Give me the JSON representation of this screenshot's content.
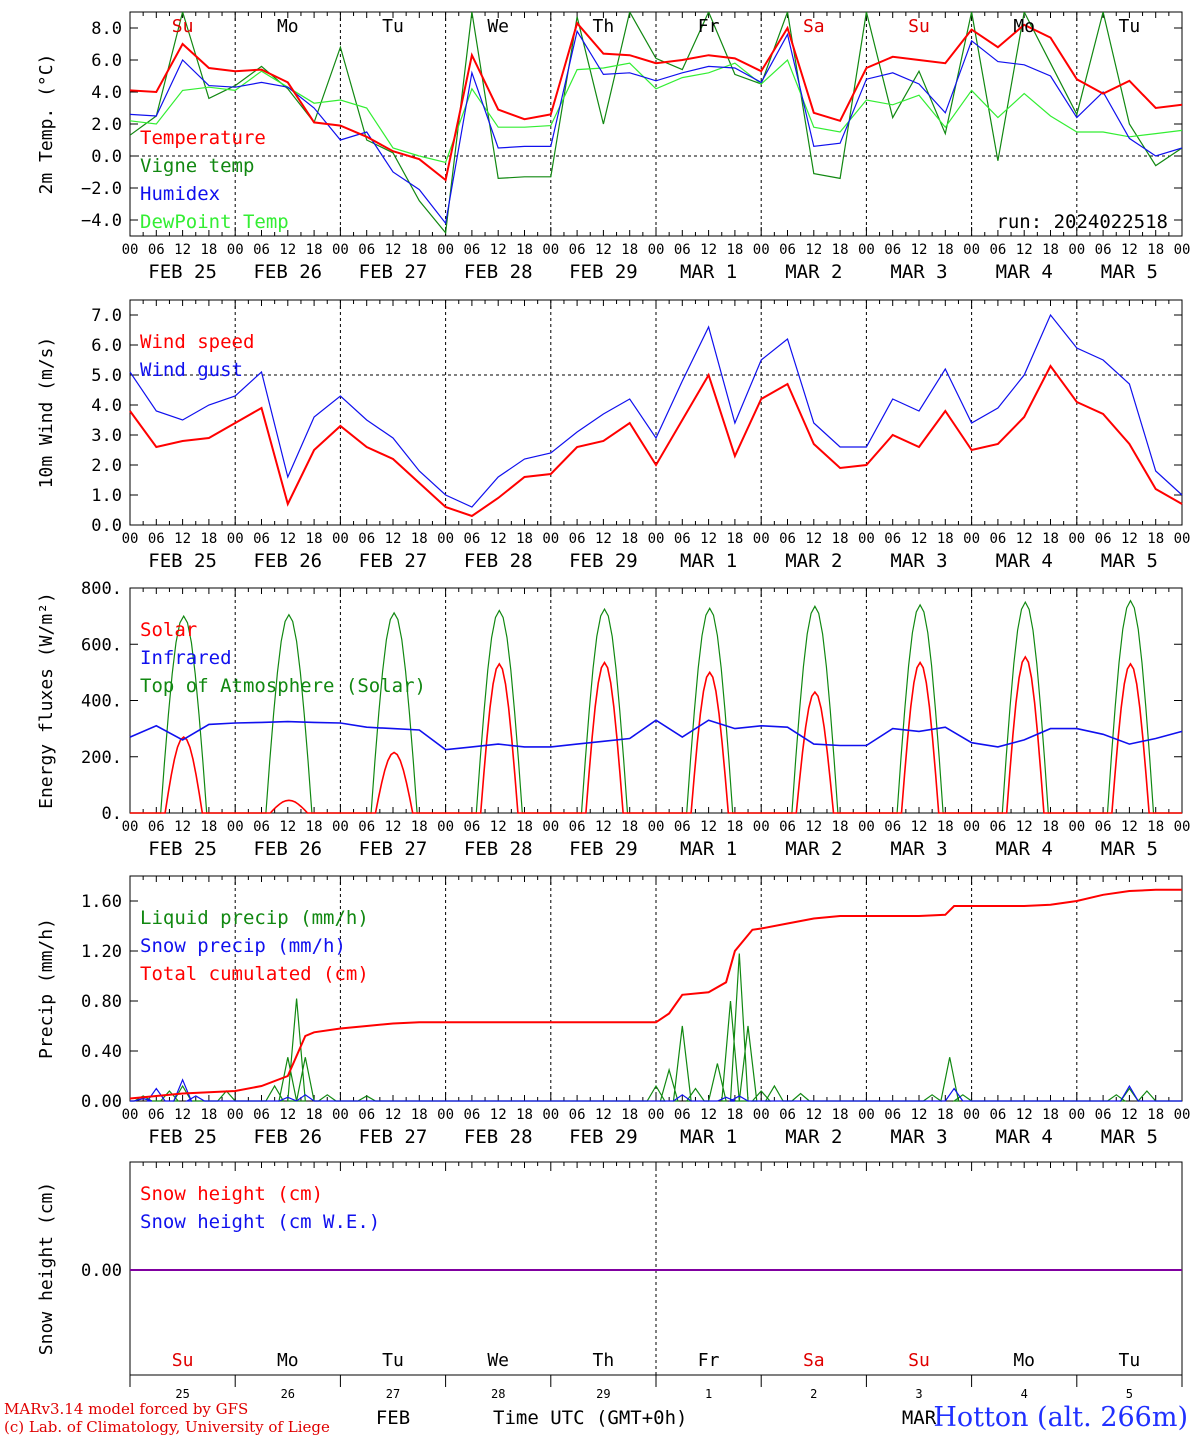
{
  "footer": {
    "credit_model": "MARv3.14 model forced by GFS",
    "credit_lab": "(c) Lab. of Climatology, University of Liege",
    "station": "Hotton (alt. 266m)"
  },
  "colors": {
    "red": "#ff0000",
    "green": "#118811",
    "blue": "#1010ee",
    "lightgreen": "#33ee33",
    "purple": "#8000a0"
  },
  "chart_data": [
    {
      "id": "temperature",
      "type": "line",
      "ylabel": "2m Temp. (°C)",
      "ylim": [
        -5.0,
        9.0
      ],
      "yticks": [
        -4,
        -2,
        0,
        2,
        4,
        6,
        8
      ],
      "ytick_labels": [
        "−4.0",
        "−2.0",
        "0.0",
        "2.0",
        "4.0",
        "6.0",
        "8.0"
      ],
      "ref_line": 0,
      "weekday_labels": [
        "Su",
        "Mo",
        "Tu",
        "We",
        "Th",
        "Fr",
        "Sa",
        "Su",
        "Mo",
        "Tu"
      ],
      "weekday_colors": [
        "red",
        "black",
        "black",
        "black",
        "black",
        "black",
        "red",
        "red",
        "black",
        "black"
      ],
      "annotation": "run: 2024022518",
      "x_hours": [
        0,
        6,
        12,
        18,
        24,
        30,
        36,
        42,
        48,
        54,
        60,
        66,
        72,
        78,
        84,
        90,
        96,
        102,
        108,
        114,
        120,
        126,
        132,
        138,
        144,
        150,
        156,
        162,
        168,
        174,
        180,
        186,
        192,
        198,
        204,
        210,
        216,
        222,
        228,
        234,
        240
      ],
      "series": [
        {
          "name": "Temperature",
          "color": "red",
          "values": [
            4.1,
            4.0,
            7.0,
            5.5,
            5.3,
            5.4,
            4.6,
            2.1,
            1.9,
            1.2,
            0.3,
            -0.2,
            -1.5,
            6.3,
            2.9,
            2.3,
            2.6,
            8.3,
            6.4,
            6.3,
            5.8,
            6.0,
            6.3,
            6.1,
            5.3,
            8.0,
            2.7,
            2.2,
            5.5,
            6.2,
            6.0,
            5.8,
            7.9,
            6.8,
            8.2,
            7.4,
            4.8,
            3.9,
            4.7,
            3.0,
            3.2
          ]
        },
        {
          "name": "Vigne temp",
          "color": "green",
          "values": [
            1.3,
            2.5,
            9.0,
            3.6,
            4.4,
            5.6,
            4.2,
            2.1,
            6.8,
            1.0,
            0.2,
            -2.8,
            -4.8,
            9.0,
            -1.4,
            -1.3,
            -1.3,
            8.7,
            2.0,
            9.0,
            6.1,
            5.4,
            9.0,
            5.1,
            4.5,
            9.0,
            -1.1,
            -1.4,
            9.0,
            2.4,
            5.3,
            1.4,
            9.0,
            -0.3,
            9.0,
            5.8,
            2.6,
            9.0,
            2.0,
            -0.6,
            0.5
          ]
        },
        {
          "name": "Humidex",
          "color": "blue",
          "values": [
            2.6,
            2.5,
            6.0,
            4.4,
            4.3,
            4.6,
            4.3,
            3.0,
            1.0,
            1.5,
            -1.0,
            -2.1,
            -4.2,
            5.2,
            0.5,
            0.6,
            0.6,
            7.8,
            5.1,
            5.2,
            4.7,
            5.2,
            5.6,
            5.5,
            4.6,
            7.6,
            0.6,
            0.8,
            4.8,
            5.2,
            4.5,
            2.7,
            7.2,
            5.9,
            5.7,
            5.0,
            2.4,
            4.0,
            1.1,
            0.0,
            0.5
          ]
        },
        {
          "name": "DewPoint Temp",
          "color": "lightgreen",
          "values": [
            2.2,
            2.0,
            4.1,
            4.3,
            4.1,
            5.3,
            4.3,
            3.3,
            3.5,
            3.0,
            0.5,
            0.0,
            -0.4,
            4.2,
            1.8,
            1.8,
            1.9,
            5.4,
            5.5,
            5.8,
            4.2,
            4.9,
            5.2,
            5.8,
            4.5,
            6.0,
            1.8,
            1.5,
            3.5,
            3.2,
            3.8,
            1.8,
            4.1,
            2.4,
            3.9,
            2.5,
            1.5,
            1.5,
            1.2,
            1.4,
            1.6
          ]
        }
      ]
    },
    {
      "id": "wind",
      "type": "line",
      "ylabel": "10m Wind (m/s)",
      "ylim": [
        0,
        7.5
      ],
      "yticks": [
        0,
        1,
        2,
        3,
        4,
        5,
        6,
        7
      ],
      "ytick_labels": [
        "0.0",
        "1.0",
        "2.0",
        "3.0",
        "4.0",
        "5.0",
        "6.0",
        "7.0"
      ],
      "ref_line": 5,
      "x_hours": [
        0,
        6,
        12,
        18,
        24,
        30,
        36,
        42,
        48,
        54,
        60,
        66,
        72,
        78,
        84,
        90,
        96,
        102,
        108,
        114,
        120,
        126,
        132,
        138,
        144,
        150,
        156,
        162,
        168,
        174,
        180,
        186,
        192,
        198,
        204,
        210,
        216,
        222,
        228,
        234,
        240
      ],
      "series": [
        {
          "name": "Wind speed",
          "color": "red",
          "values": [
            3.8,
            2.6,
            2.8,
            2.9,
            3.4,
            3.9,
            0.7,
            2.5,
            3.3,
            2.6,
            2.2,
            1.4,
            0.6,
            0.3,
            0.9,
            1.6,
            1.7,
            2.6,
            2.8,
            3.4,
            2.0,
            3.5,
            5.0,
            2.3,
            4.2,
            4.7,
            2.7,
            1.9,
            2.0,
            3.0,
            2.6,
            3.8,
            2.5,
            2.7,
            3.6,
            5.3,
            4.1,
            3.7,
            2.7,
            1.2,
            0.7
          ]
        },
        {
          "name": "Wind gust",
          "color": "blue",
          "values": [
            5.1,
            3.8,
            3.5,
            4.0,
            4.3,
            5.1,
            1.6,
            3.6,
            4.3,
            3.5,
            2.9,
            1.8,
            1.0,
            0.6,
            1.6,
            2.2,
            2.4,
            3.1,
            3.7,
            4.2,
            2.9,
            4.8,
            6.6,
            3.4,
            5.5,
            6.2,
            3.4,
            2.6,
            2.6,
            4.2,
            3.8,
            5.2,
            3.4,
            3.9,
            5.0,
            7.0,
            5.9,
            5.5,
            4.7,
            1.8,
            1.0
          ]
        }
      ]
    },
    {
      "id": "energy",
      "type": "line",
      "ylabel": "Energy fluxes (W/m²)",
      "ylim": [
        0,
        800
      ],
      "yticks": [
        0,
        200,
        400,
        600,
        800
      ],
      "ytick_labels": [
        "0.",
        "200.",
        "400.",
        "600.",
        "800."
      ],
      "series": [
        {
          "name": "Solar",
          "color": "red",
          "day_peaks": [
            270,
            45,
            215,
            530,
            535,
            500,
            430,
            535,
            555,
            530
          ]
        },
        {
          "name": "Infrared",
          "color": "blue",
          "x_hours": [
            0,
            6,
            12,
            18,
            24,
            30,
            36,
            42,
            48,
            54,
            60,
            66,
            72,
            78,
            84,
            90,
            96,
            102,
            108,
            114,
            120,
            126,
            132,
            138,
            144,
            150,
            156,
            162,
            168,
            174,
            180,
            186,
            192,
            198,
            204,
            210,
            216,
            222,
            228,
            234,
            240
          ],
          "values": [
            270,
            310,
            260,
            315,
            320,
            322,
            325,
            322,
            320,
            305,
            300,
            295,
            225,
            235,
            245,
            235,
            235,
            245,
            255,
            265,
            330,
            270,
            330,
            300,
            310,
            305,
            245,
            240,
            240,
            300,
            290,
            305,
            250,
            235,
            260,
            300,
            300,
            280,
            245,
            265,
            290
          ]
        },
        {
          "name": "Top of Atmosphere (Solar)",
          "color": "green",
          "day_peaks": [
            700,
            705,
            712,
            720,
            725,
            728,
            735,
            740,
            750,
            755
          ]
        }
      ]
    },
    {
      "id": "precip",
      "type": "line",
      "ylabel": "Precip (mm/h)",
      "ylim": [
        0,
        1.8
      ],
      "yticks": [
        0,
        0.4,
        0.8,
        1.2,
        1.6
      ],
      "ytick_labels": [
        "0.00",
        "0.40",
        "0.80",
        "1.20",
        "1.60"
      ],
      "series": [
        {
          "name": "Liquid precip (mm/h)",
          "color": "green",
          "spikes": [
            [
              3,
              0.04
            ],
            [
              9,
              0.08
            ],
            [
              12,
              0.12
            ],
            [
              22,
              0.08
            ],
            [
              33,
              0.12
            ],
            [
              36,
              0.35
            ],
            [
              38,
              0.82
            ],
            [
              40,
              0.35
            ],
            [
              45,
              0.05
            ],
            [
              54,
              0.04
            ],
            [
              120,
              0.12
            ],
            [
              123,
              0.25
            ],
            [
              126,
              0.6
            ],
            [
              129,
              0.1
            ],
            [
              134,
              0.3
            ],
            [
              137,
              0.8
            ],
            [
              139,
              1.18
            ],
            [
              141,
              0.6
            ],
            [
              144,
              0.08
            ],
            [
              147,
              0.12
            ],
            [
              153,
              0.06
            ],
            [
              183,
              0.05
            ],
            [
              187,
              0.35
            ],
            [
              190,
              0.05
            ],
            [
              225,
              0.05
            ],
            [
              228,
              0.1
            ],
            [
              232,
              0.08
            ]
          ]
        },
        {
          "name": "Snow precip (mm/h)",
          "color": "blue",
          "spikes": [
            [
              3,
              0.02
            ],
            [
              6,
              0.1
            ],
            [
              12,
              0.17
            ],
            [
              15,
              0.04
            ],
            [
              36,
              0.03
            ],
            [
              40,
              0.05
            ],
            [
              126,
              0.05
            ],
            [
              136,
              0.03
            ],
            [
              139,
              0.04
            ],
            [
              188,
              0.1
            ],
            [
              228,
              0.12
            ]
          ]
        },
        {
          "name": "Total cumulated (cm)",
          "color": "red",
          "x_hours": [
            0,
            6,
            12,
            18,
            24,
            30,
            36,
            40,
            42,
            48,
            54,
            60,
            66,
            72,
            78,
            84,
            90,
            96,
            102,
            108,
            114,
            120,
            123,
            126,
            132,
            136,
            138,
            142,
            144,
            150,
            156,
            162,
            168,
            174,
            180,
            186,
            188,
            192,
            198,
            204,
            210,
            216,
            222,
            228,
            234,
            240
          ],
          "values": [
            0.02,
            0.04,
            0.06,
            0.07,
            0.08,
            0.12,
            0.2,
            0.52,
            0.55,
            0.58,
            0.6,
            0.62,
            0.63,
            0.63,
            0.63,
            0.63,
            0.63,
            0.63,
            0.63,
            0.63,
            0.63,
            0.63,
            0.7,
            0.85,
            0.87,
            0.95,
            1.2,
            1.37,
            1.38,
            1.42,
            1.46,
            1.48,
            1.48,
            1.48,
            1.48,
            1.49,
            1.56,
            1.56,
            1.56,
            1.56,
            1.57,
            1.6,
            1.65,
            1.68,
            1.69,
            1.69
          ]
        }
      ]
    },
    {
      "id": "snow",
      "type": "line",
      "ylabel": "Snow height (cm)",
      "yticks": [
        0
      ],
      "ytick_labels": [
        "0.00"
      ],
      "weekday_labels": [
        "Su",
        "Mo",
        "Tu",
        "We",
        "Th",
        "Fr",
        "Sa",
        "Su",
        "Mo",
        "Tu"
      ],
      "weekday_colors": [
        "red",
        "black",
        "black",
        "black",
        "black",
        "black",
        "red",
        "red",
        "black",
        "black"
      ],
      "day_numbers": [
        "25",
        "26",
        "27",
        "28",
        "29",
        "1",
        "2",
        "3",
        "4",
        "5"
      ],
      "month_labels": [
        "FEB",
        "MAR"
      ],
      "xlabel": "Time UTC (GMT+0h)",
      "series": [
        {
          "name": "Snow height (cm)",
          "color": "red",
          "values": [
            0,
            0
          ]
        },
        {
          "name": "Snow height (cm W.E.)",
          "color": "blue",
          "values": [
            0,
            0
          ]
        }
      ]
    }
  ],
  "x_axis": {
    "hour_labels": [
      "00",
      "06",
      "12",
      "18"
    ],
    "date_labels": [
      "FEB  25",
      "FEB  26",
      "FEB  27",
      "FEB  28",
      "FEB  29",
      "MAR   1",
      "MAR   2",
      "MAR   3",
      "MAR   4",
      "MAR   5"
    ],
    "month_boundary_hour": 120
  }
}
